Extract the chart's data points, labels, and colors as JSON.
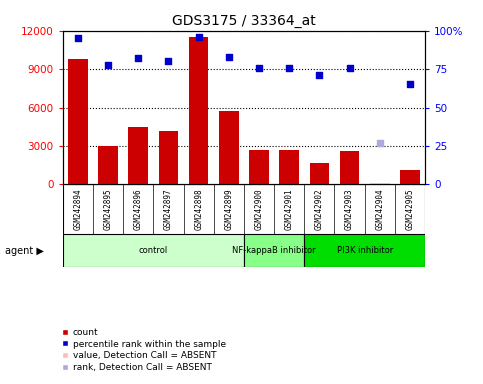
{
  "title": "GDS3175 / 33364_at",
  "samples": [
    "GSM242894",
    "GSM242895",
    "GSM242896",
    "GSM242897",
    "GSM242898",
    "GSM242899",
    "GSM242900",
    "GSM242901",
    "GSM242902",
    "GSM242903",
    "GSM242904",
    "GSM242905"
  ],
  "bar_values": [
    9800,
    3000,
    4500,
    4200,
    11500,
    5700,
    2700,
    2700,
    1700,
    2600,
    80,
    1100
  ],
  "bar_absent": [
    false,
    false,
    false,
    false,
    false,
    false,
    false,
    false,
    false,
    false,
    true,
    false
  ],
  "percentile_values": [
    95,
    78,
    82,
    80,
    96,
    83,
    76,
    76,
    71,
    76,
    null,
    65
  ],
  "rank_absent_pct": 27,
  "rank_absent_index": 10,
  "ylim_left": [
    0,
    12000
  ],
  "ylim_right": [
    0,
    100
  ],
  "yticks_left": [
    0,
    3000,
    6000,
    9000,
    12000
  ],
  "yticks_right": [
    0,
    25,
    50,
    75,
    100
  ],
  "yticklabels_right": [
    "0",
    "25",
    "50",
    "75",
    "100%"
  ],
  "bar_color": "#cc0000",
  "bar_absent_color": "#ffbbbb",
  "dot_color": "#0000cc",
  "rank_absent_color": "#aaaadd",
  "agent_groups": [
    {
      "label": "control",
      "start": 0,
      "end": 6,
      "color": "#ccffcc"
    },
    {
      "label": "NF-kappaB inhibitor",
      "start": 6,
      "end": 8,
      "color": "#88ff88"
    },
    {
      "label": "PI3K inhibitor",
      "start": 8,
      "end": 12,
      "color": "#00dd00"
    }
  ],
  "grid_color": "black",
  "plot_bg": "#ffffff",
  "xtick_area_bg": "#cccccc",
  "fig_bg": "#ffffff"
}
